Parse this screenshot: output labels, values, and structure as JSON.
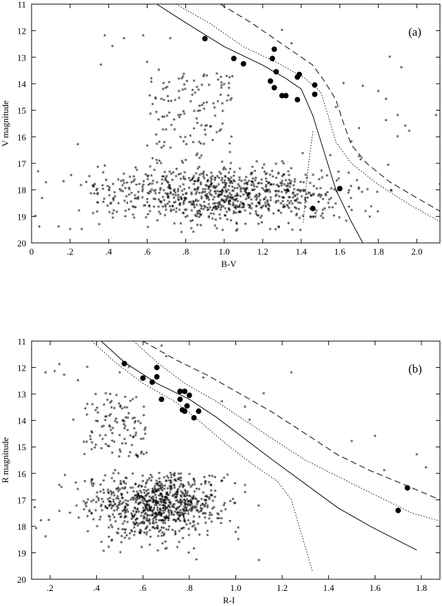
{
  "chart_data": [
    {
      "type": "scatter",
      "panel_label": "(a)",
      "xlabel": "B-V",
      "ylabel": "V magnitude",
      "xlim": [
        0,
        2.12
      ],
      "ylim": [
        20,
        11
      ],
      "x_ticks": [
        0,
        0.2,
        0.4,
        0.6,
        0.8,
        1.0,
        1.2,
        1.4,
        1.6,
        1.8,
        2.0
      ],
      "x_tick_labels": [
        "0",
        ".2",
        ".4",
        ".6",
        ".8",
        "1.0",
        "1.2",
        "1.4",
        "1.6",
        "1.8",
        "2.0"
      ],
      "y_ticks": [
        11,
        12,
        13,
        14,
        15,
        16,
        17,
        18,
        19,
        20
      ],
      "y_tick_labels": [
        "11",
        "12",
        "13",
        "14",
        "15",
        "16",
        "17",
        "18",
        "19",
        "20"
      ],
      "series": [
        {
          "style": "solid",
          "points": [
            [
              0.65,
              11
            ],
            [
              0.8,
              11.7
            ],
            [
              1.0,
              12.6
            ],
            [
              1.2,
              13.3
            ],
            [
              1.32,
              13.8
            ],
            [
              1.4,
              14.2
            ],
            [
              1.46,
              15.2
            ],
            [
              1.52,
              16.6
            ],
            [
              1.58,
              18.0
            ],
            [
              1.66,
              19.2
            ],
            [
              1.72,
              20
            ]
          ]
        },
        {
          "style": "dotted",
          "points": [
            [
              0.75,
              11
            ],
            [
              0.92,
              11.7
            ],
            [
              1.1,
              12.6
            ],
            [
              1.3,
              13.3
            ],
            [
              1.42,
              13.8
            ],
            [
              1.5,
              14.3
            ],
            [
              1.54,
              15.2
            ],
            [
              1.58,
              16.2
            ],
            [
              1.66,
              17.0
            ],
            [
              1.8,
              17.8
            ],
            [
              1.95,
              18.5
            ],
            [
              2.12,
              19.2
            ]
          ]
        },
        {
          "style": "dotted",
          "points": [
            [
              1.46,
              15.8
            ],
            [
              1.43,
              17.5
            ],
            [
              1.41,
              19.3
            ]
          ]
        },
        {
          "style": "dashed",
          "points": [
            [
              0.98,
              11
            ],
            [
              1.14,
              11.7
            ],
            [
              1.32,
              12.6
            ],
            [
              1.46,
              13.3
            ],
            [
              1.52,
              13.9
            ],
            [
              1.58,
              14.6
            ],
            [
              1.62,
              15.5
            ],
            [
              1.66,
              16.3
            ],
            [
              1.74,
              17.0
            ],
            [
              1.86,
              17.7
            ],
            [
              2.0,
              18.3
            ],
            [
              2.12,
              18.8
            ]
          ]
        }
      ],
      "members": [
        [
          0.9,
          12.3
        ],
        [
          1.26,
          12.7
        ],
        [
          1.25,
          13.05
        ],
        [
          1.05,
          13.05
        ],
        [
          1.1,
          13.25
        ],
        [
          1.27,
          13.55
        ],
        [
          1.39,
          13.65
        ],
        [
          1.38,
          13.75
        ],
        [
          1.24,
          13.9
        ],
        [
          1.26,
          14.15
        ],
        [
          1.47,
          14.05
        ],
        [
          1.3,
          14.45
        ],
        [
          1.32,
          14.45
        ],
        [
          1.47,
          14.4
        ],
        [
          1.38,
          14.6
        ],
        [
          1.6,
          17.95
        ],
        [
          1.46,
          18.7
        ]
      ],
      "field_stars_bright": [
        [
          0.38,
          12.2
        ],
        [
          0.48,
          12.3
        ],
        [
          0.42,
          12.6
        ],
        [
          0.58,
          12.2
        ],
        [
          0.72,
          12.3
        ],
        [
          0.36,
          13.3
        ],
        [
          0.6,
          13.2
        ],
        [
          0.66,
          13.5
        ],
        [
          1.3,
          12.0
        ],
        [
          1.35,
          12.5
        ],
        [
          1.86,
          13.0
        ],
        [
          1.92,
          13.4
        ],
        [
          1.62,
          14.0
        ],
        [
          1.72,
          14.1
        ],
        [
          1.8,
          14.3
        ],
        [
          1.84,
          14.6
        ],
        [
          1.58,
          14.9
        ],
        [
          1.9,
          15.2
        ],
        [
          1.94,
          15.6
        ],
        [
          2.1,
          15.2
        ],
        [
          1.96,
          15.8
        ],
        [
          1.9,
          16.0
        ],
        [
          0.24,
          16.3
        ],
        [
          0.38,
          17.1
        ],
        [
          2.12,
          17.8
        ],
        [
          0.02,
          19.0
        ],
        [
          0.14,
          19.4
        ],
        [
          0.2,
          19.5
        ],
        [
          0.26,
          19.5
        ],
        [
          0.04,
          19.4
        ],
        [
          1.84,
          15.4
        ],
        [
          1.7,
          15.7
        ],
        [
          1.66,
          16.2
        ]
      ],
      "field_clump": {
        "x_range": [
          0.6,
          1.05
        ],
        "y_range": [
          13.6,
          16.5
        ],
        "count": 120
      },
      "field_main": {
        "center": [
          0.98,
          18.2
        ],
        "spread": [
          0.32,
          0.75
        ],
        "count": 900
      }
    },
    {
      "type": "scatter",
      "panel_label": "(b)",
      "xlabel": "R-I",
      "ylabel": "R magnitude",
      "xlim": [
        0.12,
        1.88
      ],
      "ylim": [
        20,
        11
      ],
      "x_ticks": [
        0.2,
        0.4,
        0.6,
        0.8,
        1.0,
        1.2,
        1.4,
        1.6,
        1.8
      ],
      "x_tick_labels": [
        ".2",
        ".4",
        ".6",
        ".8",
        "1.0",
        "1.2",
        "1.4",
        "1.6",
        "1.8"
      ],
      "y_ticks": [
        11,
        12,
        13,
        14,
        15,
        16,
        17,
        18,
        19,
        20
      ],
      "y_tick_labels": [
        "11",
        "12",
        "13",
        "14",
        "15",
        "16",
        "17",
        "18",
        "19",
        "20"
      ],
      "series": [
        {
          "style": "solid",
          "points": [
            [
              0.42,
              11
            ],
            [
              0.52,
              11.8
            ],
            [
              0.66,
              12.6
            ],
            [
              0.8,
              13.2
            ],
            [
              0.92,
              13.9
            ],
            [
              1.04,
              14.7
            ],
            [
              1.16,
              15.5
            ],
            [
              1.3,
              16.4
            ],
            [
              1.44,
              17.3
            ],
            [
              1.58,
              18.0
            ],
            [
              1.78,
              18.9
            ]
          ]
        },
        {
          "style": "dotted",
          "points": [
            [
              0.38,
              11
            ],
            [
              0.48,
              11.8
            ],
            [
              0.6,
              12.6
            ],
            [
              0.74,
              13.3
            ],
            [
              0.84,
              14.0
            ],
            [
              0.96,
              14.9
            ],
            [
              1.08,
              15.7
            ],
            [
              1.18,
              16.3
            ],
            [
              1.24,
              17.0
            ],
            [
              1.28,
              18.2
            ],
            [
              1.33,
              19.7
            ]
          ]
        },
        {
          "style": "dotted",
          "points": [
            [
              0.56,
              11
            ],
            [
              0.66,
              11.8
            ],
            [
              0.78,
              12.6
            ],
            [
              0.92,
              13.3
            ],
            [
              1.04,
              14.0
            ],
            [
              1.16,
              14.7
            ],
            [
              1.3,
              15.5
            ],
            [
              1.46,
              16.2
            ],
            [
              1.62,
              16.9
            ],
            [
              1.76,
              17.5
            ],
            [
              1.88,
              17.8
            ]
          ]
        },
        {
          "style": "dashed",
          "points": [
            [
              0.6,
              11
            ],
            [
              0.74,
              11.7
            ],
            [
              0.88,
              12.3
            ],
            [
              1.02,
              13.0
            ],
            [
              1.16,
              13.7
            ],
            [
              1.3,
              14.5
            ],
            [
              1.44,
              15.3
            ],
            [
              1.58,
              15.9
            ],
            [
              1.72,
              16.4
            ],
            [
              1.88,
              17.0
            ]
          ]
        }
      ],
      "members": [
        [
          0.52,
          11.85
        ],
        [
          0.66,
          12.0
        ],
        [
          0.6,
          12.4
        ],
        [
          0.66,
          12.35
        ],
        [
          0.64,
          12.55
        ],
        [
          0.68,
          13.2
        ],
        [
          0.76,
          12.9
        ],
        [
          0.78,
          12.9
        ],
        [
          0.8,
          13.05
        ],
        [
          0.76,
          13.2
        ],
        [
          0.79,
          13.45
        ],
        [
          0.77,
          13.6
        ],
        [
          0.78,
          13.65
        ],
        [
          0.84,
          13.65
        ],
        [
          0.82,
          13.9
        ],
        [
          1.74,
          16.55
        ],
        [
          1.7,
          17.4
        ]
      ],
      "field_stars_bright": [
        [
          0.18,
          12.2
        ],
        [
          0.22,
          12.15
        ],
        [
          0.26,
          12.3
        ],
        [
          0.24,
          11.9
        ],
        [
          0.32,
          12.5
        ],
        [
          0.36,
          12.0
        ],
        [
          0.5,
          12.2
        ],
        [
          0.54,
          12.0
        ],
        [
          0.68,
          11.2
        ],
        [
          0.7,
          11.6
        ],
        [
          1.24,
          12.2
        ],
        [
          1.12,
          13.0
        ],
        [
          1.04,
          13.5
        ],
        [
          1.06,
          14.0
        ],
        [
          1.5,
          14.8
        ],
        [
          1.6,
          14.6
        ],
        [
          1.78,
          15.3
        ],
        [
          1.82,
          15.8
        ],
        [
          1.64,
          15.9
        ],
        [
          0.44,
          13.0
        ],
        [
          0.36,
          13.4
        ],
        [
          0.3,
          14.0
        ],
        [
          0.48,
          15.9
        ],
        [
          0.16,
          17.8
        ],
        [
          0.14,
          18.1
        ],
        [
          0.18,
          18.4
        ],
        [
          1.1,
          19.3
        ],
        [
          0.86,
          12.4
        ],
        [
          0.94,
          13.3
        ]
      ],
      "field_clump": {
        "x_range": [
          0.34,
          0.62
        ],
        "y_range": [
          13.0,
          15.4
        ],
        "count": 110
      },
      "field_main": {
        "center": [
          0.66,
          17.2
        ],
        "spread": [
          0.14,
          0.85
        ],
        "count": 850
      }
    }
  ]
}
